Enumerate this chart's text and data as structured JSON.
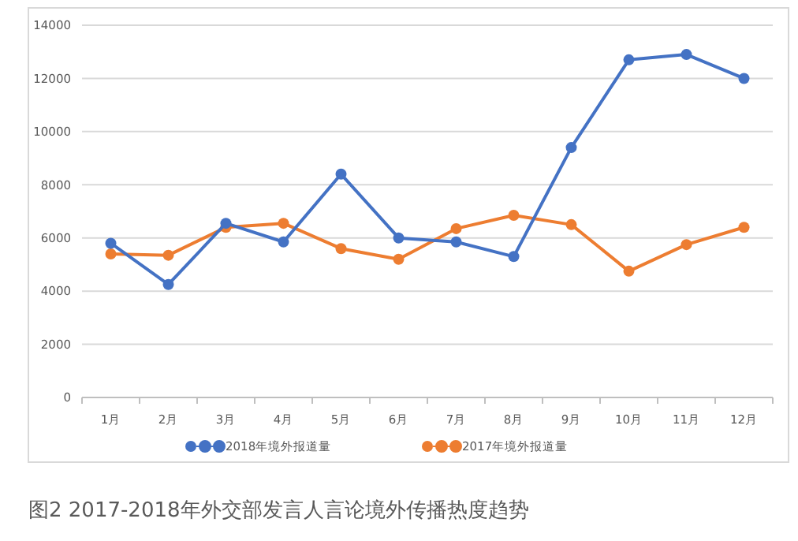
{
  "chart_data": {
    "type": "line",
    "title": "图2 2017-2018年外交部发言人言论境外传播热度趋势",
    "categories": [
      "1月",
      "2月",
      "3月",
      "4月",
      "5月",
      "6月",
      "7月",
      "8月",
      "9月",
      "10月",
      "11月",
      "12月"
    ],
    "series": [
      {
        "name": "2018年境外报道量",
        "color": "#4472c4",
        "values": [
          5800,
          4250,
          6550,
          5850,
          8400,
          6000,
          5850,
          5300,
          9400,
          12700,
          12900,
          12000
        ]
      },
      {
        "name": "2017年境外报道量",
        "color": "#ed7d31",
        "values": [
          5400,
          5350,
          6400,
          6550,
          5600,
          5200,
          6350,
          6850,
          6500,
          4750,
          5750,
          6400
        ]
      }
    ],
    "ylim": [
      0,
      14000
    ],
    "yticks": [
      0,
      2000,
      4000,
      6000,
      8000,
      10000,
      12000,
      14000
    ],
    "grid": "y",
    "legend": "bottom",
    "marker": "circle",
    "line_style": "solid"
  }
}
